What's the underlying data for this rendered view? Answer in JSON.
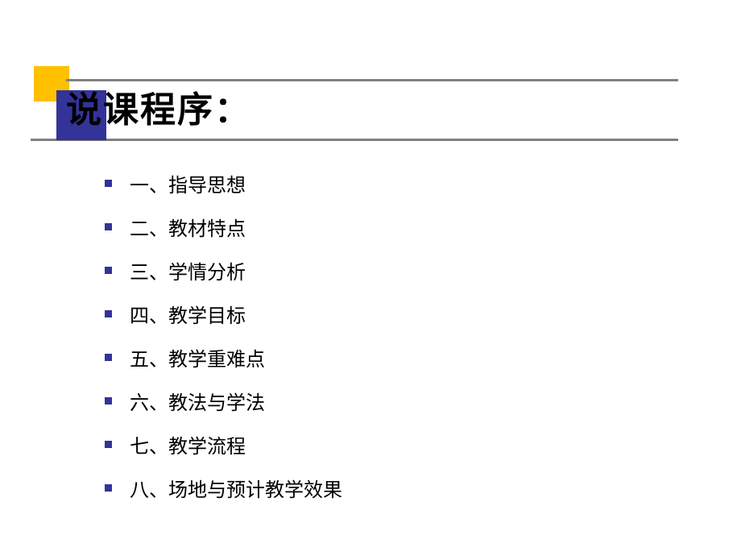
{
  "slide": {
    "title": "说课程序：",
    "title_fontsize": 44,
    "title_color": "#000000",
    "decoration": {
      "yellow_square_color": "#ffc000",
      "blue_square_color": "#333399",
      "line_color": "#808080"
    },
    "bullet_color": "#333399",
    "item_fontsize": 24,
    "item_color": "#000000",
    "background_color": "#ffffff",
    "items": [
      "一、指导思想",
      "二、教材特点",
      "三、学情分析",
      "四、教学目标",
      "五、教学重难点",
      "六、教法与学法",
      "七、教学流程",
      "八、场地与预计教学效果"
    ]
  }
}
